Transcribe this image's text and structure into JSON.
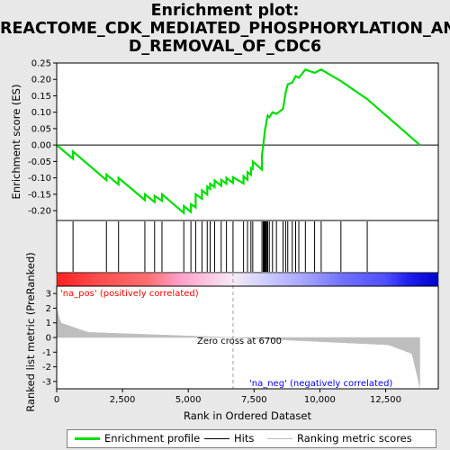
{
  "title_line1": "Enrichment plot:",
  "title_line2": "REACTOME_CDK_MEDIATED_PHOSPHORYLATION_AN",
  "title_line3": "D_REMOVAL_OF_CDC6",
  "colors": {
    "enrichment": "#00dd00",
    "hits": "#000000",
    "ranking": "#bebebe",
    "pos": "#ff0000",
    "neg": "#0000ff",
    "zero_line": "#a0a0a0"
  },
  "legend": {
    "enrichment": "Enrichment profile",
    "hits": "Hits",
    "ranking": "Ranking metric scores"
  },
  "chart_data": {
    "type": "line",
    "xlabel": "Rank in Ordered Dataset",
    "ylabel_top": "Enrichment score (ES)",
    "ylabel_bottom": "Ranked list metric (PreRanked)",
    "xlim": [
      0,
      14500
    ],
    "x_ticks": [
      0,
      2500,
      5000,
      7500,
      10000,
      12500
    ],
    "x_tick_labels": [
      "0",
      "2,500",
      "5,000",
      "7,500",
      "10,000",
      "12,500"
    ],
    "es_ylim": [
      -0.23,
      0.25
    ],
    "es_ticks": [
      0.25,
      0.2,
      0.15,
      0.1,
      0.05,
      0.0,
      -0.05,
      -0.1,
      -0.15,
      -0.2
    ],
    "es_tick_labels": [
      "0.25",
      "0.20",
      "0.15",
      "0.10",
      "0.05",
      "0.00",
      "-0.05",
      "-0.10",
      "-0.15",
      "-0.20"
    ],
    "metric_ylim": [
      -3.5,
      3.5
    ],
    "metric_ticks": [
      3,
      2,
      1,
      0,
      -1,
      -2,
      -3
    ],
    "metric_tick_labels": [
      "3",
      "2",
      "1",
      "0",
      "-1",
      "-2",
      "-3"
    ],
    "zero_cross_label": "Zero cross at 6700",
    "zero_cross_x": 6700,
    "pos_label": "'na_pos' (positively correlated)",
    "neg_label": "'na_neg' (negatively correlated)",
    "hits": [
      620,
      1890,
      2350,
      3350,
      3720,
      4000,
      4830,
      5100,
      5280,
      5520,
      5720,
      5830,
      6000,
      6250,
      6450,
      6700,
      7100,
      7250,
      7380,
      7450,
      7800,
      7850,
      7880,
      7900,
      7920,
      7950,
      7980,
      8020,
      8080,
      8200,
      8350,
      8600,
      8700,
      8780,
      8950,
      9080,
      9200,
      9450,
      9800,
      10050,
      10800,
      11800
    ],
    "es_series": {
      "name": "Enrichment profile",
      "x": [
        0,
        620,
        621,
        1890,
        1891,
        2350,
        2351,
        3350,
        3351,
        3720,
        3721,
        4000,
        4001,
        4830,
        4831,
        5100,
        5101,
        5280,
        5281,
        5520,
        5521,
        5720,
        5721,
        5830,
        5831,
        6000,
        6001,
        6250,
        6251,
        6450,
        6451,
        6700,
        6701,
        7100,
        7101,
        7250,
        7251,
        7380,
        7381,
        7450,
        7451,
        7800,
        7801,
        7850,
        7880,
        7900,
        7920,
        7950,
        7980,
        8020,
        8080,
        8200,
        8350,
        8600,
        8700,
        8780,
        8950,
        9080,
        9200,
        9450,
        9800,
        10050,
        10800,
        11800,
        13800
      ],
      "y": [
        0.0,
        -0.042,
        -0.02,
        -0.107,
        -0.09,
        -0.12,
        -0.1,
        -0.168,
        -0.15,
        -0.174,
        -0.155,
        -0.17,
        -0.15,
        -0.207,
        -0.186,
        -0.204,
        -0.18,
        -0.19,
        -0.15,
        -0.164,
        -0.138,
        -0.151,
        -0.127,
        -0.134,
        -0.118,
        -0.128,
        -0.108,
        -0.124,
        -0.106,
        -0.118,
        -0.1,
        -0.116,
        -0.098,
        -0.117,
        -0.095,
        -0.106,
        -0.083,
        -0.091,
        -0.07,
        -0.073,
        -0.05,
        -0.075,
        -0.03,
        0.0,
        0.02,
        0.035,
        0.05,
        0.06,
        0.075,
        0.09,
        0.085,
        0.1,
        0.095,
        0.11,
        0.16,
        0.185,
        0.19,
        0.21,
        0.205,
        0.23,
        0.22,
        0.23,
        0.195,
        0.14,
        0.0
      ]
    }
  }
}
